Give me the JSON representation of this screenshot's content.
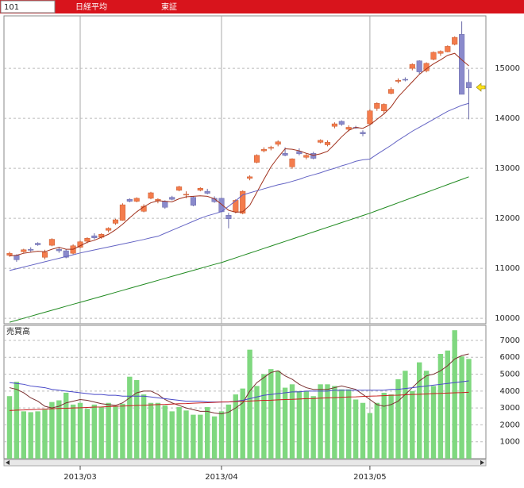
{
  "header": {
    "code": "101",
    "name": "日経平均",
    "market": "東証"
  },
  "chart_data": [
    {
      "type": "candlestick",
      "categories": [
        null,
        null,
        null,
        null,
        null,
        null,
        null,
        null,
        null,
        null,
        "2013/03",
        null,
        null,
        null,
        null,
        null,
        null,
        null,
        null,
        null,
        null,
        null,
        null,
        null,
        null,
        null,
        null,
        null,
        null,
        null,
        "2013/04",
        null,
        null,
        null,
        null,
        null,
        null,
        null,
        null,
        null,
        null,
        null,
        null,
        null,
        null,
        null,
        null,
        null,
        null,
        null,
        null,
        "2013/05",
        null,
        null,
        null,
        null,
        null,
        null,
        null,
        null,
        null,
        null,
        null,
        null,
        null,
        null
      ],
      "open": [
        11260,
        11260,
        11330,
        11380,
        11500,
        11220,
        11460,
        11380,
        11350,
        11300,
        11420,
        11540,
        11650,
        11620,
        11760,
        11900,
        11960,
        12380,
        12340,
        12140,
        12400,
        12350,
        12340,
        12420,
        12560,
        12470,
        12420,
        12560,
        12540,
        12400,
        12400,
        12060,
        12130,
        12100,
        12800,
        13120,
        13350,
        13400,
        13480,
        13300,
        13030,
        13340,
        13220,
        13300,
        13520,
        13470,
        13840,
        13940,
        13780,
        13820,
        13720,
        13890,
        14200,
        14150,
        14500,
        14740,
        14780,
        15000,
        15150,
        14950,
        15180,
        15300,
        15330,
        15480,
        15680,
        14720
      ],
      "high": [
        11330,
        11280,
        11390,
        11420,
        11520,
        11370,
        11600,
        11420,
        11380,
        11480,
        11560,
        11620,
        11700,
        11700,
        11820,
        11990,
        12300,
        12400,
        12420,
        12280,
        12530,
        12400,
        12360,
        12450,
        12650,
        12540,
        12440,
        12620,
        12590,
        12440,
        12410,
        12110,
        12380,
        12560,
        12860,
        13280,
        13420,
        13450,
        13560,
        13420,
        13200,
        13400,
        13290,
        13330,
        13580,
        13560,
        13920,
        13960,
        13860,
        13850,
        13760,
        14180,
        14320,
        14300,
        14620,
        14800,
        14820,
        15100,
        15160,
        15120,
        15340,
        15360,
        15460,
        15640,
        15940,
        14980
      ],
      "low": [
        11230,
        11130,
        11310,
        11330,
        11450,
        11180,
        11440,
        11310,
        11200,
        11280,
        11400,
        11500,
        11580,
        11590,
        11720,
        11870,
        11950,
        12320,
        12320,
        12120,
        12380,
        12300,
        12190,
        12360,
        12540,
        12400,
        12240,
        12540,
        12480,
        12310,
        12120,
        11800,
        12100,
        12080,
        12760,
        13100,
        13320,
        13360,
        13440,
        13240,
        12990,
        13260,
        13180,
        13180,
        13500,
        13440,
        13800,
        13850,
        13740,
        13790,
        13640,
        13870,
        14150,
        14100,
        14480,
        14700,
        14740,
        14960,
        14890,
        14920,
        15160,
        15250,
        15320,
        15460,
        14480,
        13980
      ],
      "close": [
        11300,
        11170,
        11370,
        11360,
        11470,
        11320,
        11580,
        11350,
        11220,
        11450,
        11530,
        11600,
        11610,
        11680,
        11800,
        11970,
        12270,
        12340,
        12400,
        12240,
        12510,
        12380,
        12220,
        12380,
        12630,
        12480,
        12260,
        12600,
        12500,
        12330,
        12130,
        11990,
        12360,
        12540,
        12830,
        13260,
        13380,
        13420,
        13530,
        13260,
        13190,
        13290,
        13260,
        13200,
        13560,
        13520,
        13890,
        13880,
        13820,
        13810,
        13690,
        14150,
        14300,
        14280,
        14580,
        14760,
        14770,
        15080,
        14930,
        15100,
        15320,
        15340,
        15440,
        15620,
        14480,
        14610
      ],
      "up_color": "#f47c4c",
      "down_color": "#8a8acc",
      "lines": [
        {
          "color": "#a0301c",
          "values": [
            11250,
            11260,
            11300,
            11320,
            11340,
            11330,
            11380,
            11420,
            11380,
            11380,
            11450,
            11520,
            11560,
            11620,
            11680,
            11770,
            11880,
            12010,
            12130,
            12230,
            12310,
            12350,
            12340,
            12330,
            12390,
            12430,
            12440,
            12450,
            12440,
            12390,
            12280,
            12160,
            12120,
            12130,
            12260,
            12520,
            12780,
            13030,
            13220,
            13390,
            13380,
            13350,
            13300,
            13260,
            13290,
            13340,
            13480,
            13630,
            13760,
            13820,
            13800,
            13870,
            13980,
            14090,
            14230,
            14430,
            14580,
            14730,
            14880,
            14990,
            15090,
            15170,
            15260,
            15300,
            15170,
            15050
          ]
        },
        {
          "color": "#6464c4",
          "values": [
            10955,
            10990,
            11025,
            11060,
            11095,
            11130,
            11165,
            11200,
            11235,
            11270,
            11306,
            11336,
            11366,
            11396,
            11426,
            11456,
            11486,
            11516,
            11546,
            11576,
            11610,
            11640,
            11700,
            11760,
            11820,
            11880,
            11940,
            12000,
            12050,
            12090,
            12134,
            12240,
            12350,
            12468,
            12510,
            12550,
            12590,
            12630,
            12670,
            12700,
            12739,
            12780,
            12830,
            12870,
            12910,
            12960,
            13000,
            13050,
            13090,
            13140,
            13170,
            13185,
            13280,
            13370,
            13460,
            13560,
            13650,
            13742,
            13820,
            13900,
            13980,
            14060,
            14140,
            14200,
            14260,
            14300
          ]
        },
        {
          "color": "#208a20",
          "values": [
            9920,
            9960,
            10000,
            10040,
            10080,
            10120,
            10160,
            10200,
            10240,
            10280,
            10318,
            10358,
            10398,
            10438,
            10478,
            10518,
            10558,
            10598,
            10638,
            10678,
            10718,
            10758,
            10798,
            10838,
            10878,
            10918,
            10958,
            10998,
            11038,
            11078,
            11115,
            11162,
            11209,
            11256,
            11303,
            11350,
            11397,
            11444,
            11491,
            11538,
            11585,
            11632,
            11679,
            11726,
            11773,
            11820,
            11867,
            11914,
            11961,
            12008,
            12055,
            12102,
            12154,
            12206,
            12258,
            12310,
            12362,
            12414,
            12466,
            12518,
            12570,
            12622,
            12674,
            12726,
            12778,
            12830
          ]
        }
      ],
      "ylim": [
        9890,
        16050
      ],
      "yticks": [
        10000,
        11000,
        12000,
        13000,
        14000,
        15000
      ],
      "grid": true
    },
    {
      "type": "bar",
      "title": "売買高",
      "color": "#7fd87f",
      "values": [
        3700,
        4550,
        2800,
        2750,
        2800,
        2900,
        3350,
        3450,
        3900,
        3200,
        3300,
        2950,
        3200,
        3050,
        3300,
        3100,
        3250,
        4850,
        4650,
        3800,
        3300,
        3300,
        3150,
        2800,
        3050,
        2850,
        2600,
        2600,
        3050,
        2500,
        2800,
        3200,
        3800,
        4150,
        6450,
        4300,
        5000,
        5300,
        5200,
        4200,
        4400,
        4000,
        4000,
        3700,
        4400,
        4400,
        4300,
        4100,
        4100,
        3500,
        3300,
        2700,
        3300,
        3900,
        3800,
        4700,
        5200,
        4000,
        5700,
        5200,
        4300,
        6200,
        6400,
        7600,
        6050,
        5900
      ],
      "lines": [
        {
          "color": "#7a3030",
          "values": [
            4200,
            4100,
            3900,
            3600,
            3400,
            3100,
            3000,
            3100,
            3300,
            3400,
            3500,
            3450,
            3350,
            3250,
            3200,
            3150,
            3300,
            3600,
            3900,
            4000,
            4000,
            3800,
            3500,
            3300,
            3150,
            3000,
            2900,
            2800,
            2800,
            2700,
            2650,
            2750,
            3000,
            3300,
            4000,
            4500,
            4800,
            5100,
            5200,
            4900,
            4700,
            4400,
            4200,
            4100,
            4100,
            4100,
            4200,
            4300,
            4200,
            4100,
            3800,
            3500,
            3200,
            3100,
            3200,
            3400,
            3800,
            4200,
            4600,
            4900,
            5000,
            5200,
            5500,
            5900,
            6100,
            6200
          ]
        },
        {
          "color": "#4848c8",
          "values": [
            4500,
            4450,
            4400,
            4300,
            4250,
            4200,
            4100,
            4050,
            4000,
            3950,
            3900,
            3850,
            3800,
            3800,
            3750,
            3750,
            3700,
            3700,
            3700,
            3700,
            3650,
            3600,
            3550,
            3500,
            3450,
            3400,
            3400,
            3400,
            3350,
            3350,
            3350,
            3350,
            3400,
            3450,
            3550,
            3650,
            3750,
            3800,
            3850,
            3900,
            3950,
            3950,
            4000,
            4000,
            4000,
            4000,
            4050,
            4050,
            4050,
            4050,
            4050,
            4050,
            4050,
            4050,
            4100,
            4100,
            4150,
            4200,
            4250,
            4300,
            4350,
            4400,
            4450,
            4500,
            4550,
            4600
          ]
        },
        {
          "color": "#c82020",
          "values": [
            2850,
            2870,
            2880,
            2900,
            2910,
            2930,
            2950,
            2970,
            2980,
            3000,
            3010,
            3030,
            3050,
            3060,
            3080,
            3100,
            3110,
            3130,
            3150,
            3160,
            3180,
            3200,
            3210,
            3230,
            3250,
            3260,
            3280,
            3300,
            3310,
            3330,
            3350,
            3360,
            3380,
            3400,
            3410,
            3430,
            3450,
            3460,
            3480,
            3500,
            3510,
            3530,
            3550,
            3560,
            3580,
            3600,
            3610,
            3630,
            3650,
            3660,
            3680,
            3700,
            3710,
            3730,
            3750,
            3760,
            3780,
            3800,
            3810,
            3830,
            3850,
            3860,
            3880,
            3900,
            3910,
            3930
          ]
        }
      ],
      "ylim": [
        0,
        7890
      ],
      "yticks": [
        1000,
        2000,
        3000,
        4000,
        5000,
        6000,
        7000
      ],
      "grid": true
    }
  ]
}
